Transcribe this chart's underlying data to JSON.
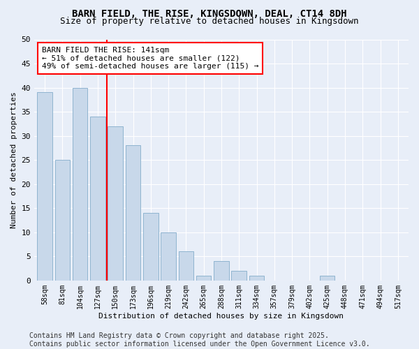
{
  "title1": "BARN FIELD, THE RISE, KINGSDOWN, DEAL, CT14 8DH",
  "title2": "Size of property relative to detached houses in Kingsdown",
  "xlabel": "Distribution of detached houses by size in Kingsdown",
  "ylabel": "Number of detached properties",
  "categories": [
    "58sqm",
    "81sqm",
    "104sqm",
    "127sqm",
    "150sqm",
    "173sqm",
    "196sqm",
    "219sqm",
    "242sqm",
    "265sqm",
    "288sqm",
    "311sqm",
    "334sqm",
    "357sqm",
    "379sqm",
    "402sqm",
    "425sqm",
    "448sqm",
    "471sqm",
    "494sqm",
    "517sqm"
  ],
  "values": [
    39,
    25,
    40,
    34,
    32,
    28,
    14,
    10,
    6,
    1,
    4,
    2,
    1,
    0,
    0,
    0,
    1,
    0,
    0,
    0,
    0
  ],
  "bar_color": "#c8d8ea",
  "bar_edge_color": "#8fb4d0",
  "red_line_x": 3.5,
  "annotation_line1": "BARN FIELD THE RISE: 141sqm",
  "annotation_line2": "← 51% of detached houses are smaller (122)",
  "annotation_line3": "49% of semi-detached houses are larger (115) →",
  "annotation_box_color": "white",
  "annotation_box_edge_color": "red",
  "ylim": [
    0,
    50
  ],
  "yticks": [
    0,
    5,
    10,
    15,
    20,
    25,
    30,
    35,
    40,
    45,
    50
  ],
  "footer_text": "Contains HM Land Registry data © Crown copyright and database right 2025.\nContains public sector information licensed under the Open Government Licence v3.0.",
  "background_color": "#e8eef8",
  "plot_background_color": "#e8eef8",
  "grid_color": "#ffffff",
  "title1_fontsize": 10,
  "title2_fontsize": 9,
  "annotation_fontsize": 8,
  "footer_fontsize": 7,
  "ylabel_fontsize": 8,
  "xlabel_fontsize": 8
}
